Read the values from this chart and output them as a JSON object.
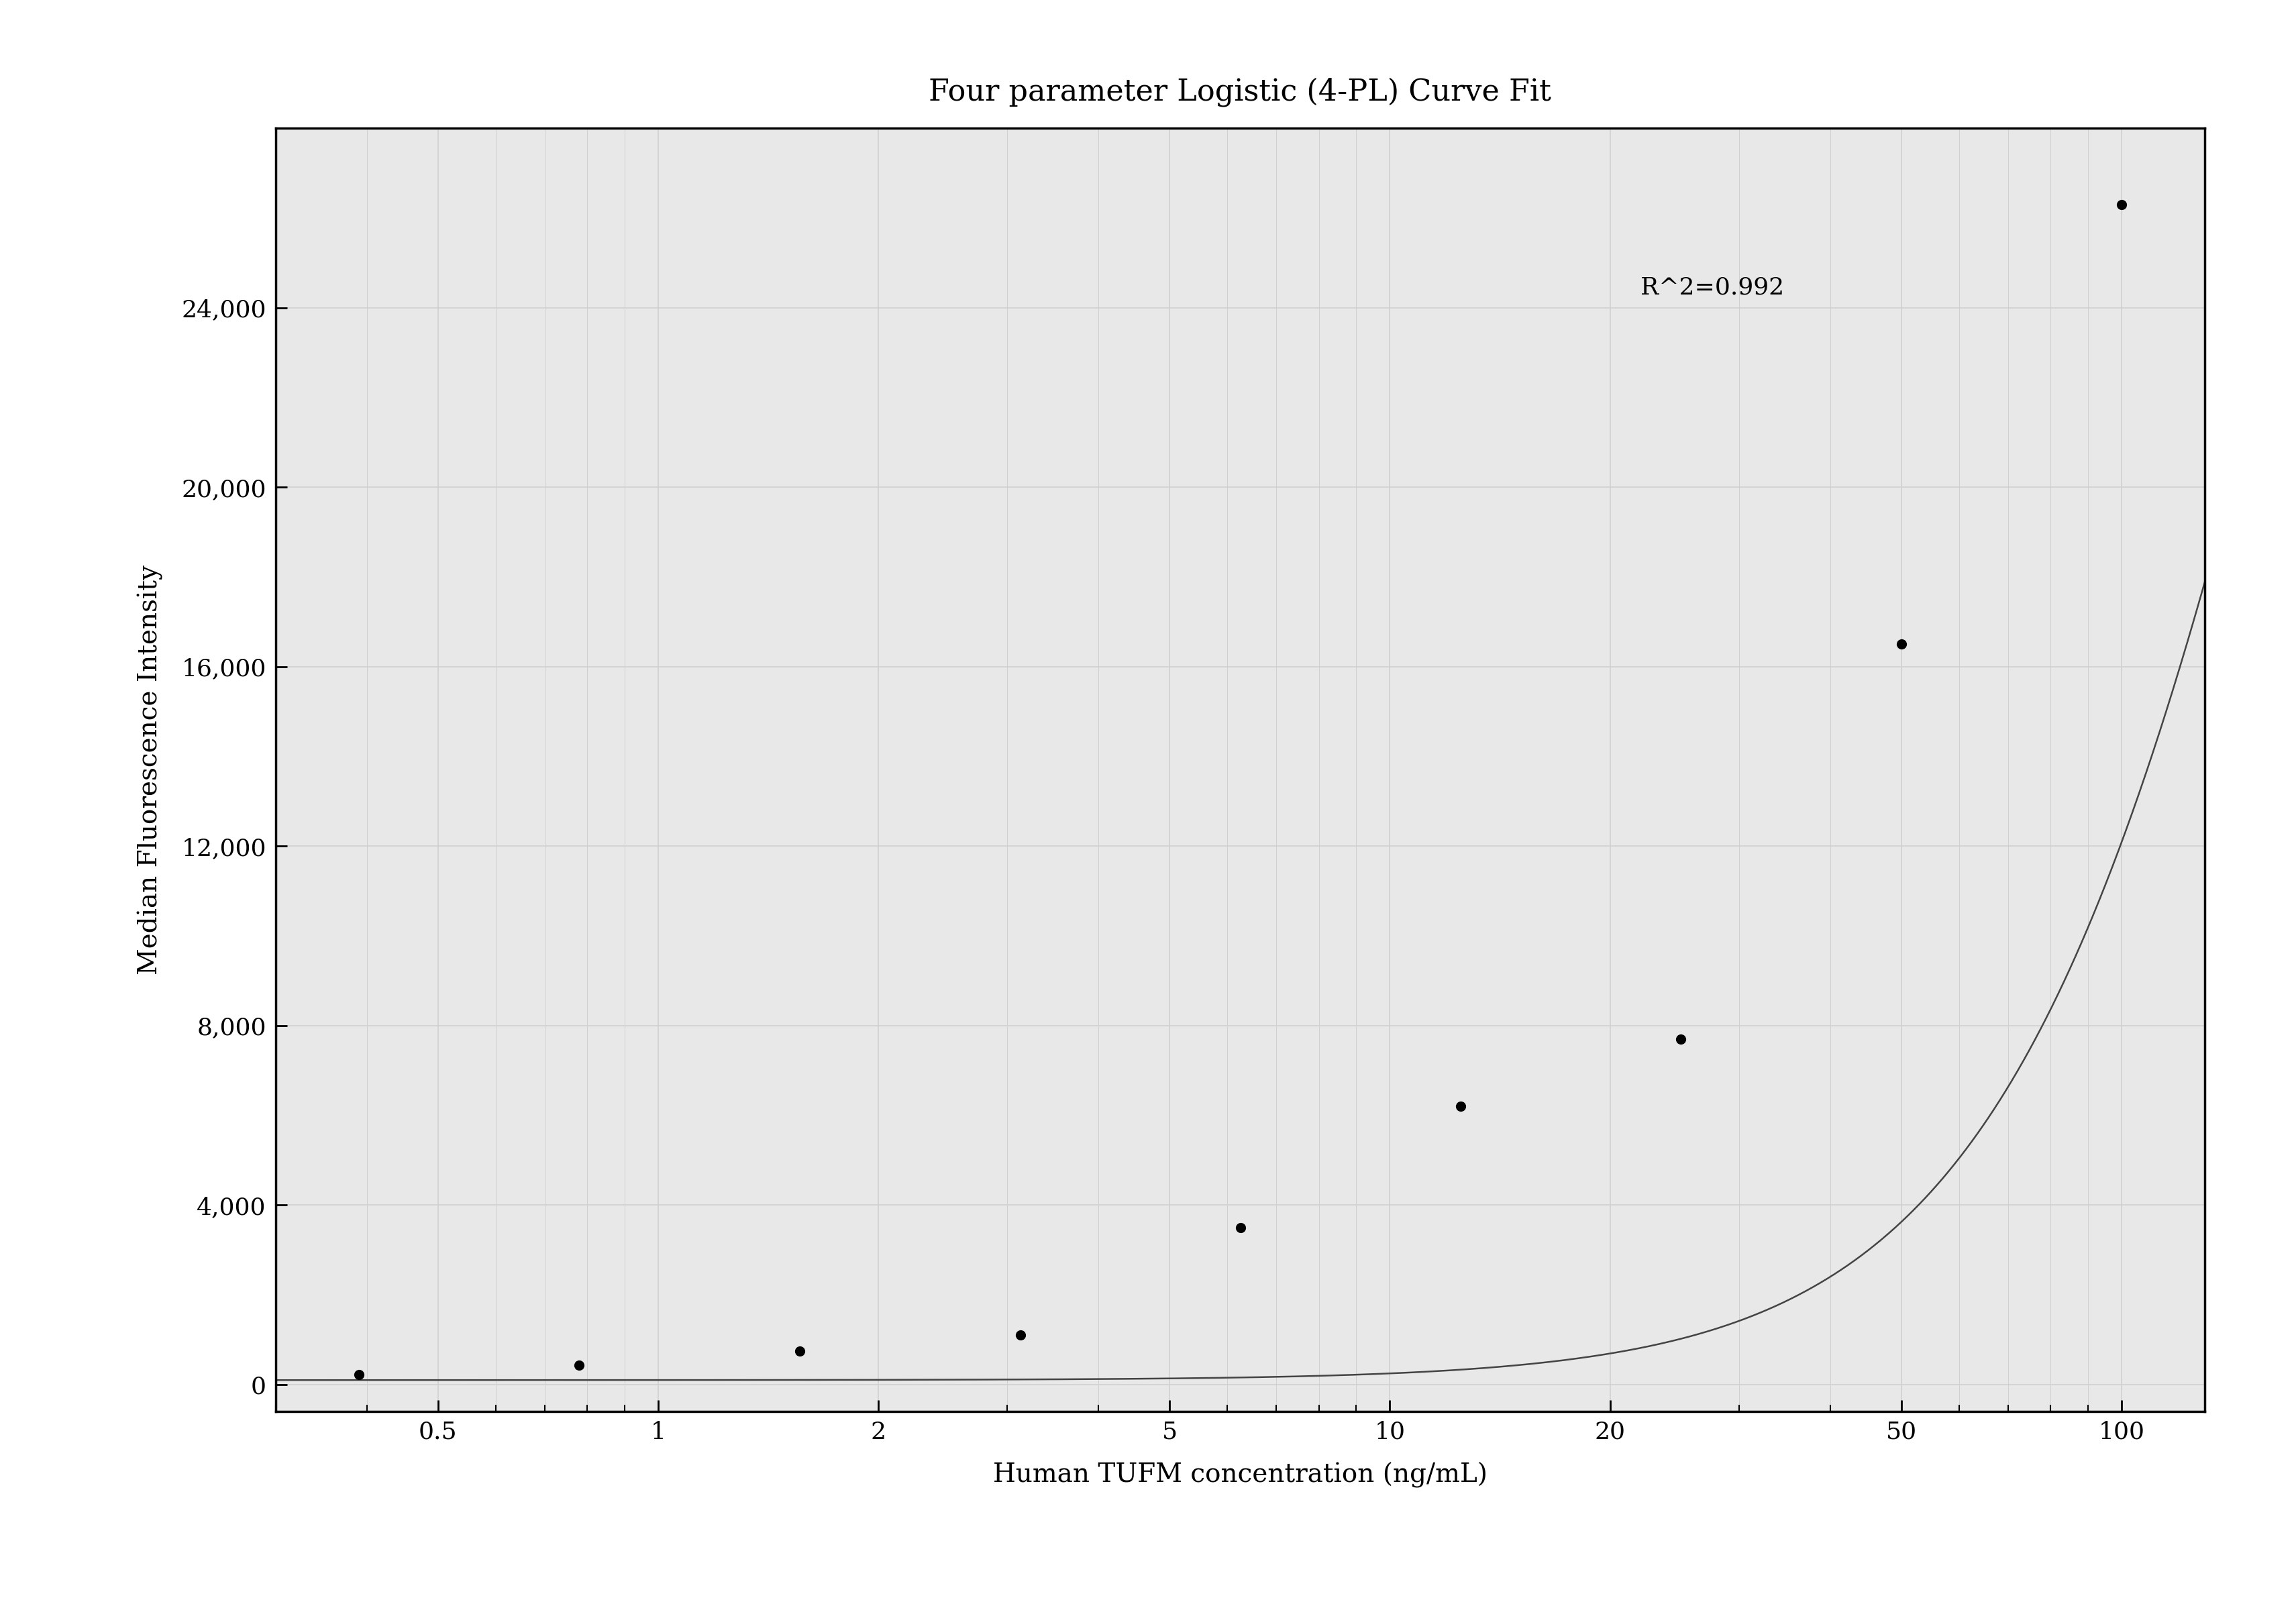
{
  "title": "Four parameter Logistic (4-PL) Curve Fit",
  "xlabel": "Human TUFM concentration (ng/mL)",
  "ylabel": "Median Fluorescence Intensity",
  "scatter_x": [
    0.39,
    0.78,
    1.56,
    3.125,
    6.25,
    12.5,
    25,
    50,
    100
  ],
  "scatter_y": [
    230,
    430,
    750,
    1100,
    3500,
    6200,
    7700,
    16500,
    26300
  ],
  "r_squared_text": "R^2=0.992",
  "r_squared_x": 22,
  "r_squared_y": 24200,
  "xmin": 0.3,
  "xmax": 130,
  "ymin": -600,
  "ymax": 28000,
  "xticks": [
    0.5,
    1,
    2,
    5,
    10,
    20,
    50,
    100
  ],
  "yticks": [
    0,
    4000,
    8000,
    12000,
    16000,
    20000,
    24000
  ],
  "grid_color": "#d0d0d0",
  "line_color": "#444444",
  "dot_color": "#000000",
  "plot_bg_color": "#e8e8e8",
  "fig_bg_color": "#ffffff",
  "title_fontsize": 32,
  "label_fontsize": 28,
  "tick_fontsize": 26,
  "annotation_fontsize": 26,
  "dot_size": 120,
  "line_width": 1.8,
  "spine_linewidth": 2.5
}
